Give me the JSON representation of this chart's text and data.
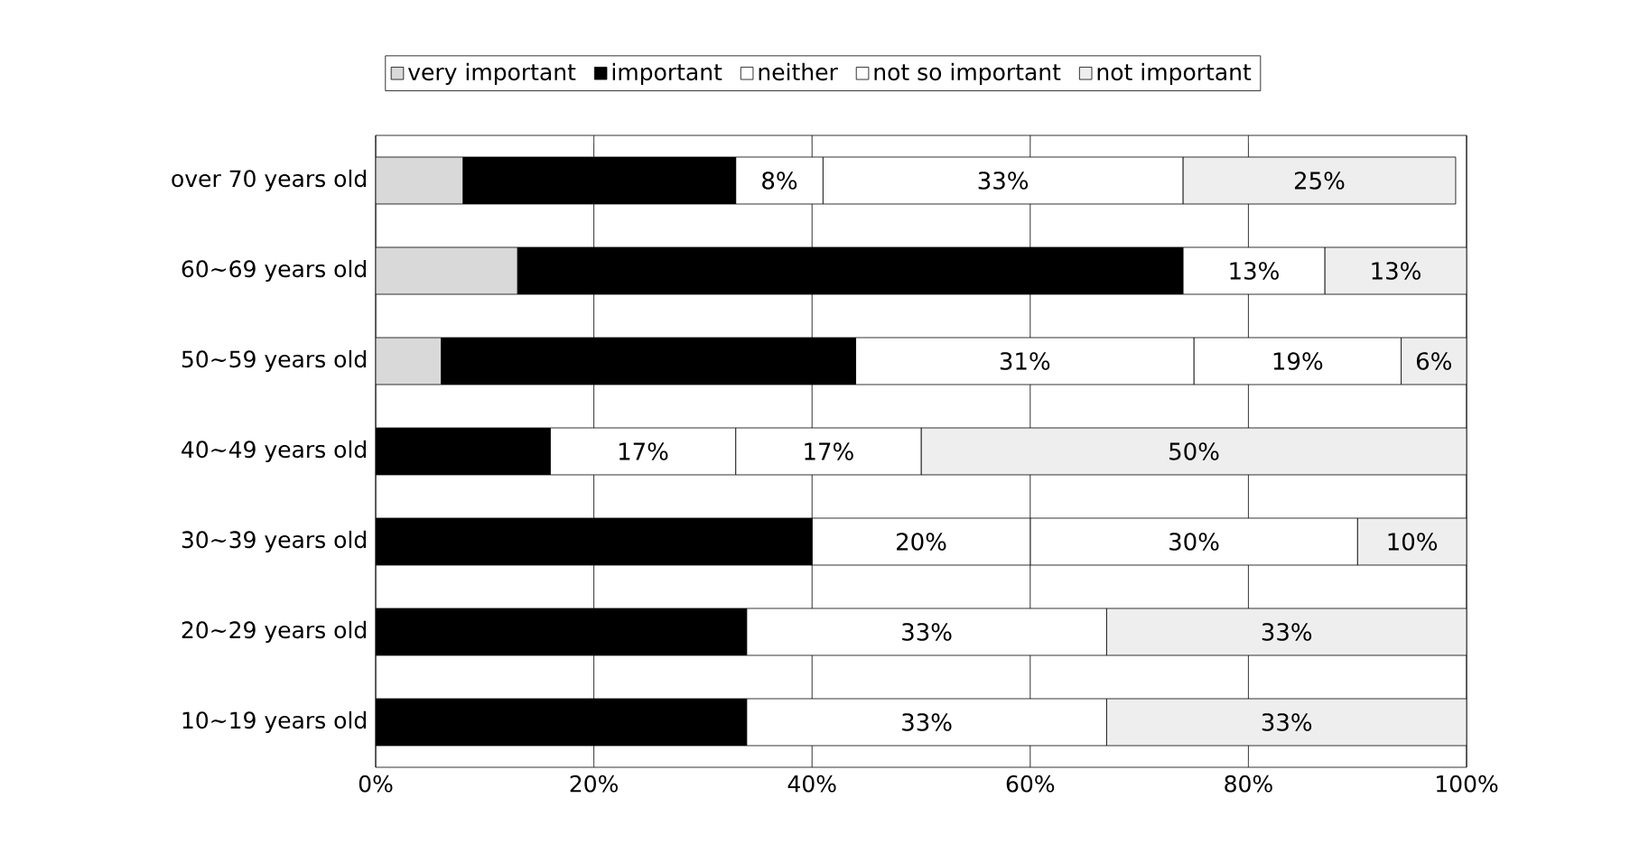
{
  "chart_data": {
    "type": "bar",
    "orientation": "horizontal",
    "stacked": true,
    "categories": [
      "over 70 years old",
      "60~69 years old",
      "50~59 years old",
      "40~49 years old",
      "30~39 years old",
      "20~29 years old",
      "10~19 years old"
    ],
    "series": [
      {
        "name": "very important",
        "color": "#d9d9d9",
        "values": [
          8,
          13,
          6,
          0,
          0,
          0,
          0
        ]
      },
      {
        "name": "important",
        "color": "#000000",
        "values": [
          25,
          61,
          38,
          16,
          40,
          34,
          34
        ]
      },
      {
        "name": "neither",
        "color": "#ffffff",
        "values": [
          8,
          0,
          31,
          17,
          20,
          0,
          0
        ],
        "value_labels": [
          "8%",
          null,
          "31%",
          "17%",
          "20%",
          null,
          null
        ]
      },
      {
        "name": "not so important",
        "color": "#ffffff",
        "values": [
          33,
          13,
          19,
          17,
          30,
          33,
          33
        ],
        "value_labels": [
          "33%",
          "13%",
          "19%",
          "17%",
          "30%",
          "33%",
          "33%"
        ]
      },
      {
        "name": "not important",
        "color": "#eeeeee",
        "values": [
          25,
          13,
          6,
          50,
          10,
          33,
          33
        ],
        "value_labels": [
          "25%",
          "13%",
          "6%",
          "50%",
          "10%",
          "33%",
          "33%"
        ]
      }
    ],
    "xlim": [
      0,
      100
    ],
    "xticks": [
      {
        "value": 0,
        "label": "0%"
      },
      {
        "value": 20,
        "label": "20%"
      },
      {
        "value": 40,
        "label": "40%"
      },
      {
        "value": 60,
        "label": "60%"
      },
      {
        "value": 80,
        "label": "80%"
      },
      {
        "value": 100,
        "label": "100%"
      }
    ],
    "grid": "x",
    "legend": "top"
  }
}
